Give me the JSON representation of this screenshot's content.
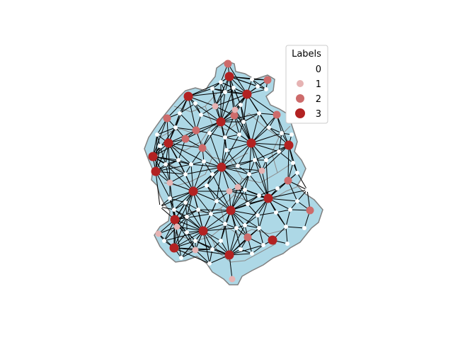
{
  "colors": {
    "region_fill": "#add8e6",
    "region_border": "#808080",
    "district_border": "#8a8a8a",
    "edge": "#000000",
    "label_0": "#ffffff",
    "label_1": "#e6b3b3",
    "label_2": "#cd6b6b",
    "label_3": "#b22222"
  },
  "legend": {
    "title": "Labels",
    "entries": [
      {
        "label": "0",
        "class": 0
      },
      {
        "label": "1",
        "class": 1
      },
      {
        "label": "2",
        "class": 2
      },
      {
        "label": "3",
        "class": 3
      }
    ]
  }
}
